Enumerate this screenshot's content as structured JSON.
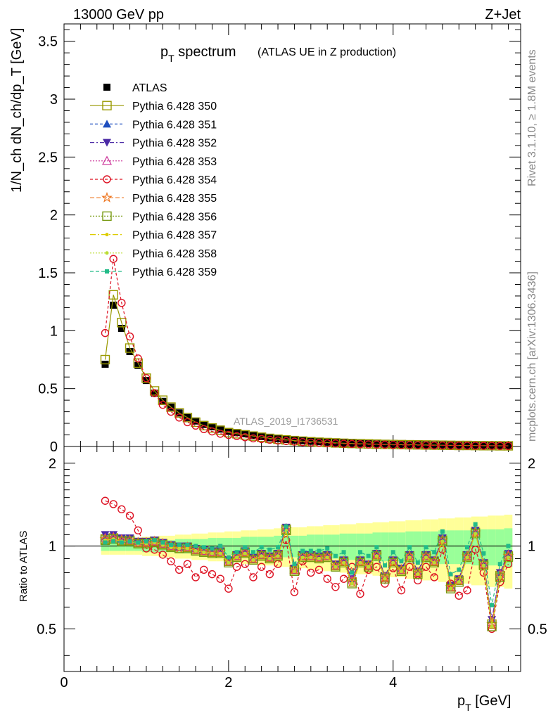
{
  "header": {
    "left": "13000 GeV pp",
    "right": "Z+Jet"
  },
  "title": {
    "main": "p",
    "main_sub": "T",
    "main_rest": " spectrum",
    "paren": "(ATLAS UE in Z production)"
  },
  "side_text": {
    "rivet": "Rivet 3.1.10, ≥ 1.8M events",
    "mcplots": "mcplots.cern.ch [arXiv:1306.3436]"
  },
  "watermark": "ATLAS_2019_I1736531",
  "axes": {
    "xlabel": "p",
    "xlabel_sub": "T",
    "xlabel_rest": " [GeV]",
    "ylabel_main": "1/N_ch dN_ch/dp_T [GeV]",
    "ylabel_ratio": "Ratio to ATLAS",
    "x_ticks": [
      "0",
      "2",
      "4"
    ],
    "y_main_ticks": [
      "0",
      "0.5",
      "1",
      "1.5",
      "2",
      "2.5",
      "3",
      "3.5"
    ],
    "y_ratio_ticks": [
      "0.5",
      "1",
      "2"
    ]
  },
  "legend": [
    {
      "label": "ATLAS",
      "color": "#000000",
      "marker": "square-filled",
      "dash": ""
    },
    {
      "label": "Pythia 6.428 350",
      "color": "#999900",
      "marker": "square-open",
      "dash": ""
    },
    {
      "label": "Pythia 6.428 351",
      "color": "#1f4fbf",
      "marker": "triangle-up",
      "dash": "4,3"
    },
    {
      "label": "Pythia 6.428 352",
      "color": "#4b2aa5",
      "marker": "triangle-down",
      "dash": "6,3,2,3"
    },
    {
      "label": "Pythia 6.428 353",
      "color": "#cc3399",
      "marker": "triangle-open",
      "dash": "2,2"
    },
    {
      "label": "Pythia 6.428 354",
      "color": "#dd1122",
      "marker": "circle-open",
      "dash": "4,3"
    },
    {
      "label": "Pythia 6.428 355",
      "color": "#ee7722",
      "marker": "star",
      "dash": "6,3"
    },
    {
      "label": "Pythia 6.428 356",
      "color": "#779911",
      "marker": "square-open",
      "dash": "2,2"
    },
    {
      "label": "Pythia 6.428 357",
      "color": "#ddcc00",
      "marker": "dot",
      "dash": "8,3,2,3"
    },
    {
      "label": "Pythia 6.428 358",
      "color": "#bbdd33",
      "marker": "dot",
      "dash": "2,2"
    },
    {
      "label": "Pythia 6.428 359",
      "color": "#22bb88",
      "marker": "square-filled-small",
      "dash": "5,3"
    }
  ],
  "chart_data": [
    {
      "type": "scatter",
      "panel": "main",
      "title": "p_T spectrum (ATLAS UE in Z production)",
      "xlabel": "p_T [GeV]",
      "ylabel": "1/N_ch dN_ch/dp_T [GeV]",
      "xlim": [
        0,
        5.55
      ],
      "ylim": [
        0,
        3.65
      ],
      "x": [
        0.5,
        0.6,
        0.7,
        0.8,
        0.9,
        1.0,
        1.1,
        1.2,
        1.3,
        1.4,
        1.5,
        1.6,
        1.7,
        1.8,
        1.9,
        2.0,
        2.1,
        2.2,
        2.3,
        2.4,
        2.5,
        2.6,
        2.7,
        2.8,
        2.9,
        3.0,
        3.1,
        3.2,
        3.3,
        3.4,
        3.5,
        3.6,
        3.7,
        3.8,
        3.9,
        4.0,
        4.1,
        4.2,
        4.3,
        4.4,
        4.5,
        4.6,
        4.7,
        4.8,
        4.9,
        5.0,
        5.1,
        5.2,
        5.3,
        5.4
      ],
      "series": [
        {
          "name": "ATLAS",
          "values": [
            0.71,
            1.22,
            1.02,
            0.82,
            0.7,
            0.57,
            0.46,
            0.39,
            0.34,
            0.29,
            0.25,
            0.22,
            0.19,
            0.17,
            0.15,
            0.13,
            0.12,
            0.11,
            0.095,
            0.085,
            0.075,
            0.068,
            0.061,
            0.055,
            0.05,
            0.045,
            0.041,
            0.037,
            0.034,
            0.031,
            0.028,
            0.026,
            0.024,
            0.022,
            0.02,
            0.018,
            0.017,
            0.016,
            0.015,
            0.014,
            0.013,
            0.012,
            0.011,
            0.01,
            0.009,
            0.008,
            0.008,
            0.007,
            0.007,
            0.006
          ]
        },
        {
          "name": "Pythia 6.428 350",
          "values": [
            0.75,
            1.31,
            1.07,
            0.85,
            0.72,
            0.59,
            0.48,
            0.4,
            0.34,
            0.29,
            0.25,
            0.21,
            0.18,
            0.16,
            0.14,
            0.12,
            0.11,
            0.1,
            0.09,
            0.08,
            0.07,
            0.063,
            0.057,
            0.051,
            0.046,
            0.041,
            0.037,
            0.034,
            0.031,
            0.028,
            0.026,
            0.024,
            0.022,
            0.02,
            0.018,
            0.017,
            0.016,
            0.015,
            0.014,
            0.013,
            0.012,
            0.011,
            0.01,
            0.009,
            0.009,
            0.008,
            0.007,
            0.007,
            0.006,
            0.006
          ]
        },
        {
          "name": "Pythia 6.428 354",
          "values": [
            0.98,
            1.62,
            1.24,
            0.95,
            0.76,
            0.59,
            0.46,
            0.36,
            0.3,
            0.25,
            0.21,
            0.18,
            0.15,
            0.13,
            0.11,
            0.1,
            0.09,
            0.08,
            0.07,
            0.065,
            0.058,
            0.052,
            0.047,
            0.042,
            0.038,
            0.034,
            0.031,
            0.028,
            0.026,
            0.024,
            0.022,
            0.02,
            0.018,
            0.017,
            0.016,
            0.014,
            0.013,
            0.012,
            0.011,
            0.01,
            0.009,
            0.009,
            0.008,
            0.008,
            0.007,
            0.007,
            0.006,
            0.006,
            0.005,
            0.005
          ]
        }
      ]
    },
    {
      "type": "scatter",
      "panel": "ratio",
      "ylabel": "Ratio to ATLAS",
      "xlim": [
        0,
        5.55
      ],
      "ylim": [
        0.35,
        2.3
      ],
      "x": [
        0.5,
        0.6,
        0.7,
        0.8,
        0.9,
        1.0,
        1.1,
        1.2,
        1.3,
        1.4,
        1.5,
        1.6,
        1.7,
        1.8,
        1.9,
        2.0,
        2.1,
        2.2,
        2.3,
        2.4,
        2.5,
        2.6,
        2.7,
        2.8,
        2.9,
        3.0,
        3.1,
        3.2,
        3.3,
        3.4,
        3.5,
        3.6,
        3.7,
        3.8,
        3.9,
        4.0,
        4.1,
        4.2,
        4.3,
        4.4,
        4.5,
        4.6,
        4.7,
        4.8,
        4.9,
        5.0,
        5.1,
        5.2,
        5.3,
        5.4
      ],
      "band_outer": [
        0.07,
        0.07,
        0.07,
        0.07,
        0.07,
        0.08,
        0.08,
        0.09,
        0.09,
        0.1,
        0.1,
        0.11,
        0.11,
        0.12,
        0.12,
        0.13,
        0.13,
        0.14,
        0.14,
        0.15,
        0.15,
        0.16,
        0.16,
        0.17,
        0.17,
        0.18,
        0.18,
        0.19,
        0.19,
        0.2,
        0.2,
        0.21,
        0.21,
        0.22,
        0.22,
        0.23,
        0.23,
        0.24,
        0.24,
        0.25,
        0.25,
        0.26,
        0.26,
        0.27,
        0.27,
        0.28,
        0.28,
        0.29,
        0.29,
        0.3
      ],
      "band_inner": [
        0.04,
        0.04,
        0.04,
        0.04,
        0.04,
        0.05,
        0.05,
        0.05,
        0.05,
        0.06,
        0.06,
        0.06,
        0.06,
        0.07,
        0.07,
        0.07,
        0.07,
        0.08,
        0.08,
        0.08,
        0.08,
        0.09,
        0.09,
        0.09,
        0.09,
        0.1,
        0.1,
        0.1,
        0.1,
        0.11,
        0.11,
        0.11,
        0.11,
        0.12,
        0.12,
        0.12,
        0.12,
        0.13,
        0.13,
        0.13,
        0.13,
        0.14,
        0.14,
        0.14,
        0.14,
        0.15,
        0.15,
        0.15,
        0.15,
        0.16
      ],
      "series": [
        {
          "name": "Pythia 6.428 350",
          "values": [
            1.06,
            1.07,
            1.05,
            1.05,
            1.03,
            1.03,
            1.04,
            1.02,
            1.0,
            0.98,
            0.99,
            0.97,
            0.96,
            0.95,
            0.95,
            0.88,
            0.92,
            0.95,
            0.9,
            0.93,
            0.91,
            0.93,
            1.15,
            0.82,
            0.92,
            0.92,
            0.91,
            0.92,
            0.85,
            0.88,
            0.74,
            0.88,
            0.85,
            0.93,
            0.77,
            0.88,
            0.82,
            0.92,
            0.8,
            0.92,
            0.88,
            1.05,
            0.71,
            0.75,
            0.92,
            1.12,
            0.86,
            0.52,
            0.78,
            0.92
          ]
        },
        {
          "name": "Pythia 6.428 351",
          "values": [
            1.08,
            1.09,
            1.06,
            1.06,
            1.04,
            1.03,
            1.05,
            1.03,
            1.01,
            0.99,
            1.0,
            0.98,
            0.97,
            0.96,
            0.96,
            0.89,
            0.93,
            0.96,
            0.91,
            0.94,
            0.92,
            0.94,
            1.17,
            0.83,
            0.93,
            0.93,
            0.92,
            0.93,
            0.86,
            0.89,
            0.76,
            0.89,
            0.86,
            0.94,
            0.78,
            0.89,
            0.83,
            0.93,
            0.81,
            0.93,
            0.89,
            1.07,
            0.72,
            0.76,
            0.93,
            1.14,
            0.87,
            0.54,
            0.8,
            0.94
          ]
        },
        {
          "name": "Pythia 6.428 352",
          "values": [
            1.1,
            1.1,
            1.07,
            1.07,
            1.04,
            1.04,
            1.05,
            1.03,
            1.01,
            1.0,
            1.0,
            0.98,
            0.97,
            0.96,
            0.96,
            0.89,
            0.93,
            0.96,
            0.91,
            0.94,
            0.92,
            0.94,
            1.17,
            0.83,
            0.93,
            0.93,
            0.92,
            0.93,
            0.86,
            0.89,
            0.76,
            0.89,
            0.86,
            0.94,
            0.78,
            0.89,
            0.83,
            0.93,
            0.81,
            0.93,
            0.89,
            1.07,
            0.72,
            0.76,
            0.93,
            1.14,
            0.87,
            0.54,
            0.8,
            0.94
          ]
        },
        {
          "name": "Pythia 6.428 353",
          "values": [
            1.07,
            1.08,
            1.06,
            1.05,
            1.03,
            1.03,
            1.04,
            1.02,
            1.0,
            0.99,
            0.99,
            0.97,
            0.96,
            0.95,
            0.95,
            0.88,
            0.92,
            0.95,
            0.9,
            0.93,
            0.91,
            0.93,
            1.16,
            0.82,
            0.92,
            0.92,
            0.91,
            0.92,
            0.85,
            0.88,
            0.75,
            0.88,
            0.85,
            0.93,
            0.77,
            0.88,
            0.82,
            0.92,
            0.8,
            0.92,
            0.88,
            1.06,
            0.71,
            0.75,
            0.92,
            1.13,
            0.86,
            0.53,
            0.79,
            0.93
          ]
        },
        {
          "name": "Pythia 6.428 354",
          "values": [
            1.46,
            1.42,
            1.36,
            1.29,
            1.14,
            0.98,
            0.97,
            0.93,
            0.88,
            0.82,
            0.86,
            0.77,
            0.82,
            0.79,
            0.76,
            0.7,
            0.84,
            0.86,
            0.77,
            0.84,
            0.79,
            0.86,
            1.05,
            0.68,
            0.88,
            0.8,
            0.82,
            0.76,
            0.71,
            0.76,
            0.84,
            0.67,
            0.82,
            0.84,
            0.73,
            0.83,
            0.69,
            0.84,
            0.75,
            0.84,
            0.77,
            0.97,
            0.73,
            0.66,
            0.69,
            0.97,
            0.8,
            0.5,
            0.74,
            0.86
          ]
        },
        {
          "name": "Pythia 6.428 355",
          "values": [
            1.06,
            1.07,
            1.05,
            1.05,
            1.03,
            1.03,
            1.04,
            1.02,
            1.0,
            0.98,
            0.99,
            0.97,
            0.96,
            0.95,
            0.95,
            0.88,
            0.92,
            0.95,
            0.9,
            0.93,
            0.91,
            0.93,
            1.15,
            0.82,
            0.92,
            0.92,
            0.91,
            0.92,
            0.85,
            0.88,
            0.74,
            0.88,
            0.85,
            0.93,
            0.77,
            0.88,
            0.82,
            0.92,
            0.8,
            0.92,
            0.88,
            1.05,
            0.71,
            0.75,
            0.92,
            1.12,
            0.86,
            0.52,
            0.78,
            0.92
          ]
        },
        {
          "name": "Pythia 6.428 356",
          "values": [
            1.05,
            1.06,
            1.04,
            1.04,
            1.02,
            1.02,
            1.03,
            1.01,
            0.99,
            0.98,
            0.98,
            0.96,
            0.95,
            0.94,
            0.94,
            0.87,
            0.91,
            0.94,
            0.89,
            0.92,
            0.9,
            0.92,
            1.14,
            0.81,
            0.91,
            0.91,
            0.9,
            0.91,
            0.84,
            0.87,
            0.73,
            0.87,
            0.84,
            0.92,
            0.76,
            0.87,
            0.81,
            0.91,
            0.79,
            0.91,
            0.87,
            1.04,
            0.7,
            0.74,
            0.91,
            1.11,
            0.85,
            0.51,
            0.77,
            0.91
          ]
        },
        {
          "name": "Pythia 6.428 357",
          "values": [
            1.05,
            1.06,
            1.04,
            1.04,
            1.02,
            1.02,
            1.03,
            1.01,
            0.99,
            0.98,
            0.98,
            0.96,
            0.95,
            0.94,
            0.94,
            0.87,
            0.91,
            0.94,
            0.89,
            0.92,
            0.9,
            0.92,
            1.14,
            0.81,
            0.91,
            0.91,
            0.9,
            0.91,
            0.84,
            0.87,
            0.73,
            0.87,
            0.84,
            0.92,
            0.76,
            0.87,
            0.81,
            0.91,
            0.79,
            0.91,
            0.87,
            1.04,
            0.7,
            0.74,
            0.91,
            1.11,
            0.85,
            0.51,
            0.77,
            0.91
          ]
        },
        {
          "name": "Pythia 6.428 358",
          "values": [
            1.05,
            1.06,
            1.04,
            1.04,
            1.02,
            1.02,
            1.03,
            1.01,
            0.99,
            0.98,
            0.98,
            0.96,
            0.95,
            0.94,
            0.94,
            0.87,
            0.91,
            0.94,
            0.89,
            0.92,
            0.9,
            0.92,
            1.14,
            0.81,
            0.91,
            0.91,
            0.9,
            0.91,
            0.84,
            0.87,
            0.73,
            0.87,
            0.84,
            0.92,
            0.76,
            0.87,
            0.81,
            0.91,
            0.79,
            0.91,
            0.87,
            1.04,
            0.7,
            0.74,
            0.91,
            1.11,
            0.85,
            0.51,
            0.77,
            0.91
          ]
        },
        {
          "name": "Pythia 6.428 359",
          "values": [
            1.03,
            1.04,
            1.03,
            1.04,
            1.03,
            1.04,
            1.05,
            1.03,
            1.01,
            1.01,
            1.01,
            1.0,
            0.99,
            0.98,
            1.0,
            0.91,
            0.95,
            0.99,
            0.95,
            0.99,
            0.97,
            0.99,
            1.18,
            0.86,
            0.96,
            0.96,
            0.96,
            0.98,
            0.92,
            0.95,
            0.8,
            0.95,
            0.92,
            0.99,
            0.85,
            0.95,
            0.88,
            0.99,
            0.87,
            0.99,
            0.95,
            1.13,
            0.79,
            0.82,
            0.99,
            1.2,
            0.94,
            0.61,
            0.86,
            1.0
          ]
        }
      ]
    }
  ]
}
